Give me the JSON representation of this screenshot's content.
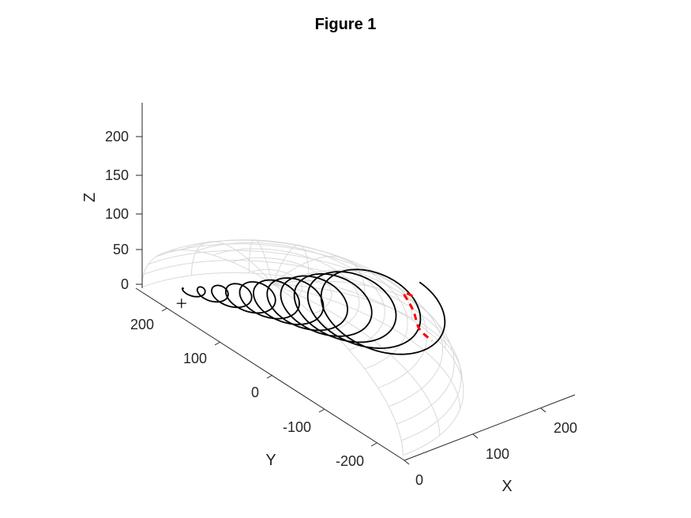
{
  "chart_data": {
    "type": "line3d",
    "title": "Figure 1",
    "xlabel": "X",
    "ylabel": "Y",
    "zlabel": "Z",
    "x_ticks": [
      "0",
      "100",
      "200"
    ],
    "y_ticks": [
      "-200",
      "-100",
      "0",
      "100",
      "200"
    ],
    "z_ticks": [
      "0",
      "50",
      "100",
      "150",
      "200"
    ],
    "xlim": [
      0,
      250
    ],
    "ylim": [
      -250,
      250
    ],
    "zlim": [
      0,
      250
    ],
    "hemisphere": {
      "radius": 250,
      "color": "#d9d9d9"
    },
    "spiral": {
      "color": "#000000",
      "turns": 11
    },
    "dashed_path": {
      "color": "#ff0000"
    },
    "start_marker": {
      "symbol": "+",
      "color": "#000000"
    },
    "grid": false
  }
}
